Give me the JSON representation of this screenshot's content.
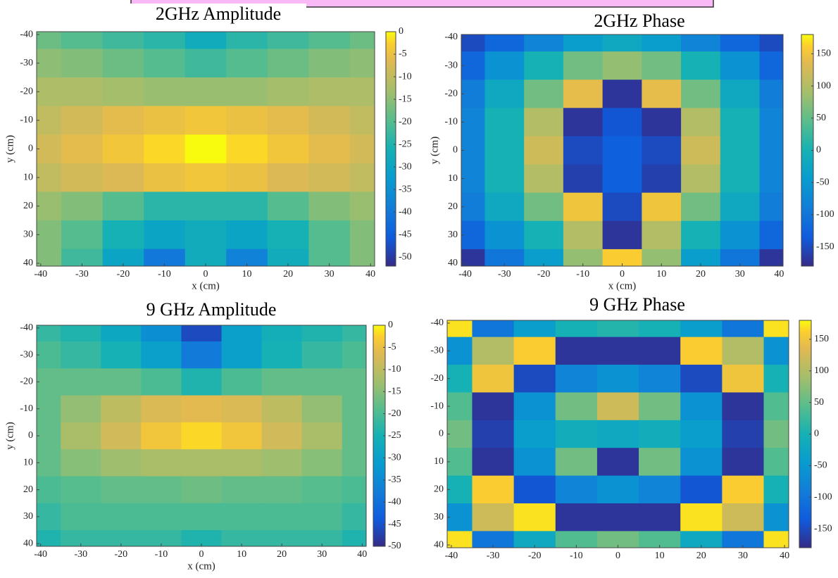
{
  "chart_data": [
    {
      "type": "heatmap",
      "title": "2GHz Amplitude",
      "xlabel": "x (cm)",
      "ylabel": "y (cm)",
      "colormap": "parula",
      "x": [
        -40,
        -30,
        -20,
        -10,
        0,
        10,
        20,
        30,
        40
      ],
      "y": [
        -40,
        -30,
        -20,
        -10,
        0,
        10,
        20,
        30,
        40
      ],
      "z": [
        [
          -18,
          -20,
          -22,
          -24,
          -28,
          -24,
          -22,
          -20,
          -18
        ],
        [
          -15,
          -16,
          -18,
          -20,
          -22,
          -20,
          -18,
          -16,
          -15
        ],
        [
          -12,
          -12,
          -13,
          -14,
          -14,
          -14,
          -13,
          -12,
          -12
        ],
        [
          -10,
          -8,
          -6,
          -5,
          -4,
          -5,
          -6,
          -8,
          -10
        ],
        [
          -8,
          -6,
          -4,
          -2,
          0,
          -2,
          -4,
          -6,
          -8
        ],
        [
          -10,
          -8,
          -7,
          -5,
          -4,
          -5,
          -7,
          -8,
          -10
        ],
        [
          -14,
          -16,
          -20,
          -24,
          -24,
          -24,
          -20,
          -16,
          -14
        ],
        [
          -16,
          -20,
          -26,
          -30,
          -28,
          -30,
          -26,
          -20,
          -16
        ],
        [
          -16,
          -22,
          -30,
          -40,
          -28,
          -38,
          -28,
          -20,
          -16
        ]
      ],
      "xlim": [
        -41,
        41
      ],
      "ylim": [
        -41,
        41
      ],
      "y_reversed": true,
      "xticks": [
        -40,
        -30,
        -20,
        -10,
        0,
        10,
        20,
        30,
        40
      ],
      "yticks": [
        -40,
        -30,
        -20,
        -10,
        0,
        10,
        20,
        30,
        40
      ],
      "clim": [
        -52,
        0
      ],
      "cticks": [
        0,
        -5,
        -10,
        -15,
        -20,
        -25,
        -30,
        -35,
        -40,
        -45,
        -50
      ]
    },
    {
      "type": "heatmap",
      "title": "2GHz Phase",
      "xlabel": "x (cm)",
      "ylabel": "y (cm)",
      "colormap": "parula",
      "x": [
        -40,
        -30,
        -20,
        -10,
        0,
        10,
        20,
        30,
        40
      ],
      "y": [
        -40,
        -30,
        -20,
        -10,
        0,
        10,
        20,
        30,
        40
      ],
      "z": [
        [
          -150,
          -120,
          -80,
          -40,
          -20,
          -40,
          -80,
          -120,
          -150
        ],
        [
          -120,
          -60,
          0,
          60,
          80,
          60,
          0,
          -60,
          -120
        ],
        [
          -90,
          -20,
          60,
          140,
          -170,
          140,
          60,
          -20,
          -90
        ],
        [
          -80,
          0,
          100,
          -170,
          -140,
          -170,
          100,
          0,
          -80
        ],
        [
          -80,
          0,
          120,
          -150,
          -130,
          -150,
          120,
          0,
          -80
        ],
        [
          -80,
          0,
          100,
          -160,
          -130,
          -160,
          100,
          0,
          -80
        ],
        [
          -90,
          -20,
          60,
          150,
          -150,
          150,
          60,
          -20,
          -90
        ],
        [
          -120,
          -60,
          0,
          100,
          -170,
          100,
          0,
          -60,
          -120
        ],
        [
          -170,
          -100,
          -40,
          80,
          160,
          80,
          -40,
          -100,
          -170
        ]
      ],
      "xlim": [
        -41,
        41
      ],
      "ylim": [
        -41,
        41
      ],
      "y_reversed": true,
      "xticks": [
        -40,
        -30,
        -20,
        -10,
        0,
        10,
        20,
        30,
        40
      ],
      "yticks": [
        -40,
        -30,
        -20,
        -10,
        0,
        10,
        20,
        30,
        40
      ],
      "clim": [
        -180,
        180
      ],
      "cticks": [
        150,
        100,
        50,
        0,
        -50,
        -100,
        -150
      ]
    },
    {
      "type": "heatmap",
      "title": "9 GHz Amplitude",
      "xlabel": "x (cm)",
      "ylabel": "y (cm)",
      "colormap": "parula",
      "x": [
        -40,
        -30,
        -20,
        -10,
        0,
        10,
        20,
        30,
        40
      ],
      "y": [
        -40,
        -30,
        -20,
        -10,
        0,
        10,
        20,
        30,
        40
      ],
      "z": [
        [
          -22,
          -24,
          -28,
          -34,
          -46,
          -30,
          -26,
          -24,
          -22
        ],
        [
          -20,
          -22,
          -25,
          -30,
          -38,
          -30,
          -25,
          -22,
          -20
        ],
        [
          -18,
          -18,
          -18,
          -20,
          -24,
          -20,
          -18,
          -18,
          -18
        ],
        [
          -18,
          -14,
          -10,
          -7,
          -6,
          -7,
          -10,
          -14,
          -18
        ],
        [
          -18,
          -12,
          -8,
          -4,
          -2,
          -4,
          -8,
          -12,
          -18
        ],
        [
          -18,
          -15,
          -13,
          -12,
          -12,
          -12,
          -13,
          -15,
          -18
        ],
        [
          -20,
          -19,
          -18,
          -18,
          -17,
          -18,
          -18,
          -19,
          -20
        ],
        [
          -22,
          -20,
          -20,
          -20,
          -20,
          -20,
          -20,
          -20,
          -22
        ],
        [
          -24,
          -22,
          -22,
          -22,
          -24,
          -22,
          -22,
          -22,
          -24
        ]
      ],
      "xlim": [
        -41,
        41
      ],
      "ylim": [
        -41,
        41
      ],
      "y_reversed": true,
      "xticks": [
        -40,
        -30,
        -20,
        -10,
        0,
        10,
        20,
        30,
        40
      ],
      "yticks": [
        -40,
        -30,
        -20,
        -10,
        0,
        10,
        20,
        30,
        40
      ],
      "clim": [
        -50,
        0
      ],
      "cticks": [
        0,
        -5,
        -10,
        -15,
        -20,
        -25,
        -30,
        -35,
        -40,
        -45,
        -50
      ]
    },
    {
      "type": "heatmap",
      "title": "9 GHz Phase",
      "colormap": "parula",
      "x": [
        -40,
        -30,
        -20,
        -10,
        0,
        10,
        20,
        30,
        40
      ],
      "y": [
        -40,
        -30,
        -20,
        -10,
        0,
        10,
        20,
        30,
        40
      ],
      "z": [
        [
          170,
          -100,
          -40,
          0,
          10,
          0,
          -40,
          -100,
          170
        ],
        [
          -60,
          100,
          160,
          -170,
          -170,
          -170,
          160,
          100,
          -60
        ],
        [
          0,
          150,
          -150,
          -80,
          -60,
          -80,
          -150,
          150,
          0
        ],
        [
          40,
          -170,
          -60,
          60,
          120,
          60,
          -60,
          -170,
          40
        ],
        [
          60,
          -160,
          -40,
          -10,
          -20,
          -10,
          -40,
          -160,
          60
        ],
        [
          40,
          -170,
          -60,
          60,
          -170,
          60,
          -60,
          -170,
          40
        ],
        [
          0,
          160,
          -140,
          -80,
          -60,
          -80,
          -140,
          160,
          0
        ],
        [
          -60,
          120,
          170,
          -170,
          -170,
          -170,
          170,
          120,
          -60
        ],
        [
          170,
          -100,
          -20,
          40,
          60,
          40,
          -20,
          -100,
          170
        ]
      ],
      "xlim": [
        -41,
        41
      ],
      "ylim": [
        -41,
        41
      ],
      "y_reversed": true,
      "xticks": [
        -40,
        -30,
        -20,
        -10,
        0,
        10,
        20,
        30,
        40
      ],
      "yticks": [
        -40,
        -30,
        -20,
        -10,
        0,
        10,
        20,
        30,
        40
      ],
      "clim": [
        -180,
        180
      ],
      "cticks": [
        150,
        100,
        50,
        0,
        -50,
        -100,
        -150
      ]
    }
  ]
}
